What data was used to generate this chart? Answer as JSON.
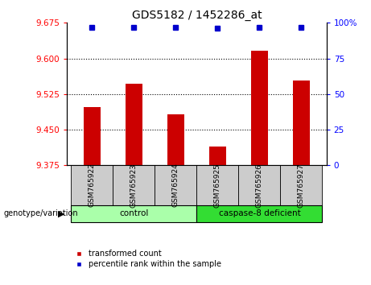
{
  "title": "GDS5182 / 1452286_at",
  "samples": [
    "GSM765922",
    "GSM765923",
    "GSM765924",
    "GSM765925",
    "GSM765926",
    "GSM765927"
  ],
  "bar_values": [
    9.497,
    9.547,
    9.483,
    9.415,
    9.617,
    9.553
  ],
  "percentile_values": [
    97,
    97,
    97,
    96,
    97,
    97
  ],
  "groups": [
    {
      "label": "control",
      "start": 0,
      "end": 3,
      "color": "#AAFFAA"
    },
    {
      "label": "caspase-8 deficient",
      "start": 3,
      "end": 6,
      "color": "#33DD33"
    }
  ],
  "bar_color": "#CC0000",
  "dot_color": "#0000CC",
  "ylim_left": [
    9.375,
    9.675
  ],
  "ylim_right": [
    0,
    100
  ],
  "yticks_left": [
    9.375,
    9.45,
    9.525,
    9.6,
    9.675
  ],
  "yticks_right": [
    0,
    25,
    50,
    75,
    100
  ],
  "ytick_labels_right": [
    "0",
    "25",
    "50",
    "75",
    "100%"
  ],
  "grid_values": [
    9.45,
    9.525,
    9.6
  ],
  "bar_width": 0.4,
  "bg_color": "#FFFFFF",
  "tick_label_bg": "#CCCCCC",
  "legend_items": [
    {
      "label": "transformed count",
      "color": "#CC0000"
    },
    {
      "label": "percentile rank within the sample",
      "color": "#0000CC"
    }
  ],
  "genotype_label": "genotype/variation"
}
